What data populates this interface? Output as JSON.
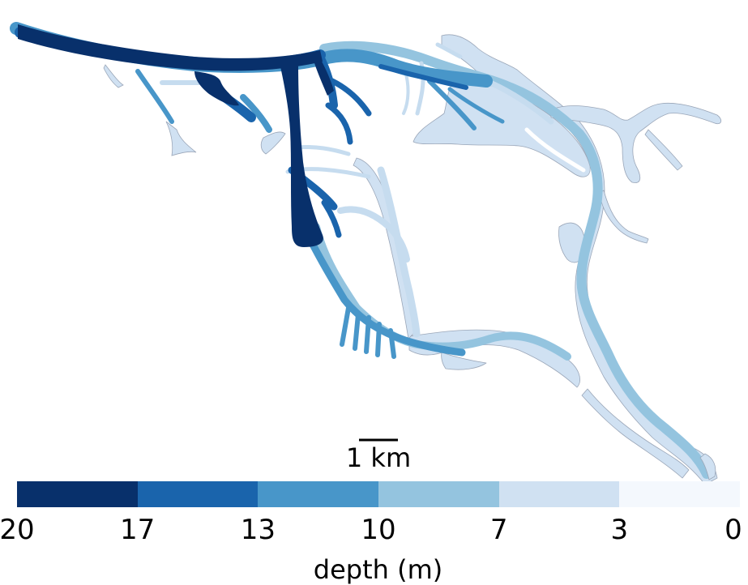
{
  "map": {
    "scale_bar_label": "1 km"
  },
  "colorbar": {
    "label": "depth (m)",
    "ticks": [
      "20",
      "17",
      "13",
      "10",
      "7",
      "3",
      "0"
    ],
    "bins": [
      {
        "from": 20,
        "to": 17,
        "color": "#08306b"
      },
      {
        "from": 17,
        "to": 13,
        "color": "#1a64ac"
      },
      {
        "from": 13,
        "to": 10,
        "color": "#4896c9"
      },
      {
        "from": 10,
        "to": 7,
        "color": "#94c4df"
      },
      {
        "from": 7,
        "to": 3,
        "color": "#d0e1f2"
      },
      {
        "from": 3,
        "to": 0,
        "color": "#f4f8fd"
      }
    ]
  },
  "colors": {
    "outline": "#9aa6b8",
    "land": "#ffffff"
  }
}
